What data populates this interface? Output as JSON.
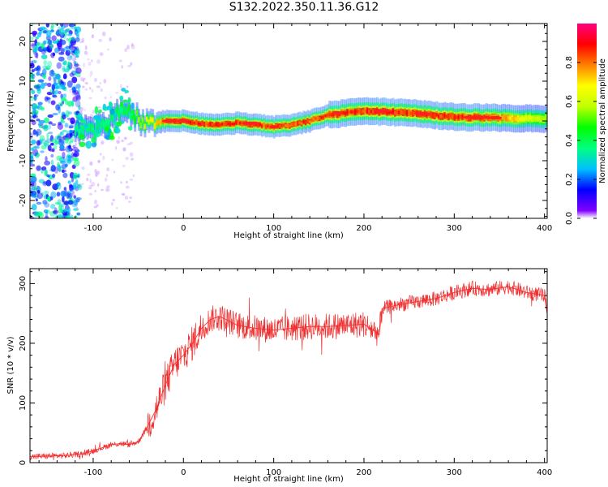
{
  "figure_title": "S132.2022.350.11.36.G12",
  "chart_data": [
    {
      "type": "heatmap",
      "title": "S132.2022.350.11.36.G12",
      "xlabel": "Height of straight line (km)",
      "ylabel": "Frequency (Hz)",
      "xlim": [
        -170,
        403
      ],
      "ylim": [
        -24.5,
        24.5
      ],
      "x_ticks": [
        -100,
        0,
        100,
        200,
        300,
        400
      ],
      "y_ticks": [
        -20,
        -10,
        0,
        10,
        20
      ],
      "colorbar": {
        "label": "Normalized spectral amplitude",
        "range": [
          0.0,
          1.0
        ],
        "ticks": [
          0.0,
          0.2,
          0.4,
          0.6,
          0.8
        ],
        "colormap": [
          "#8000ff",
          "#0000ff",
          "#00c0ff",
          "#00ff80",
          "#00ff00",
          "#c0ff00",
          "#ffff00",
          "#ff8000",
          "#ff0000",
          "#ff0080"
        ]
      },
      "ridge_frequency": [
        {
          "x": -120,
          "f": -3
        },
        {
          "x": -100,
          "f": -2
        },
        {
          "x": -80,
          "f": 0
        },
        {
          "x": -65,
          "f": 4
        },
        {
          "x": -55,
          "f": 1
        },
        {
          "x": -40,
          "f": -1
        },
        {
          "x": -20,
          "f": 0
        },
        {
          "x": 0,
          "f": 0
        },
        {
          "x": 30,
          "f": -1
        },
        {
          "x": 60,
          "f": -0.5
        },
        {
          "x": 100,
          "f": -1.5
        },
        {
          "x": 120,
          "f": -1
        },
        {
          "x": 140,
          "f": 0
        },
        {
          "x": 160,
          "f": 1.5
        },
        {
          "x": 200,
          "f": 2.5
        },
        {
          "x": 250,
          "f": 2
        },
        {
          "x": 300,
          "f": 1
        },
        {
          "x": 350,
          "f": 0.8
        },
        {
          "x": 400,
          "f": 0.5
        }
      ],
      "ridge_amplitude": [
        {
          "x": -120,
          "a": 0.35
        },
        {
          "x": -60,
          "a": 0.45
        },
        {
          "x": -20,
          "a": 0.85
        },
        {
          "x": 0,
          "a": 0.95
        },
        {
          "x": 100,
          "a": 0.9
        },
        {
          "x": 170,
          "a": 0.9
        },
        {
          "x": 220,
          "a": 0.95
        },
        {
          "x": 330,
          "a": 0.9
        },
        {
          "x": 400,
          "a": 0.6
        }
      ]
    },
    {
      "type": "line",
      "xlabel": "Height of straight line (km)",
      "ylabel": "SNR (10 * v/v)",
      "xlim": [
        -170,
        403
      ],
      "ylim": [
        0,
        325
      ],
      "x_ticks": [
        -100,
        0,
        100,
        200,
        300,
        400
      ],
      "y_ticks": [
        0,
        100,
        200,
        300
      ],
      "color": "#f03030",
      "series": [
        {
          "x": [
            -170,
            -130,
            -110,
            -100,
            -90,
            -80,
            -70,
            -60,
            -50,
            -40,
            -30,
            -20,
            -10,
            0,
            10,
            20,
            30,
            40,
            60,
            80,
            100,
            120,
            140,
            160,
            180,
            200,
            217,
            220,
            240,
            260,
            280,
            300,
            320,
            340,
            360,
            380,
            400,
            403
          ],
          "y": [
            10,
            12,
            15,
            20,
            25,
            30,
            32,
            30,
            35,
            60,
            90,
            130,
            165,
            180,
            200,
            225,
            240,
            245,
            230,
            225,
            222,
            225,
            228,
            228,
            230,
            232,
            215,
            258,
            265,
            270,
            275,
            285,
            292,
            290,
            295,
            285,
            280,
            250
          ]
        }
      ]
    }
  ]
}
